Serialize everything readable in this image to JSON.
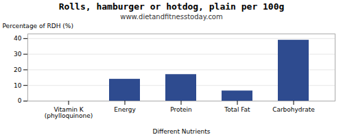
{
  "chart_data": {
    "type": "bar",
    "title": "Rolls, hamburger or hotdog, plain per 100g",
    "subtitle": "www.dietandfitnesstoday.com",
    "xlabel": "Different Nutrients",
    "ylabel": "Percentage of RDH (%)",
    "categories": [
      "Vitamin K (phylloquinone)",
      "Energy",
      "Protein",
      "Total Fat",
      "Carbohydrate"
    ],
    "values": [
      0,
      14,
      17,
      6.5,
      39
    ],
    "color": "#2E4B8F",
    "ylim": [
      0,
      43
    ],
    "yticks": [
      0,
      10,
      20,
      30,
      40
    ],
    "grid": true
  }
}
